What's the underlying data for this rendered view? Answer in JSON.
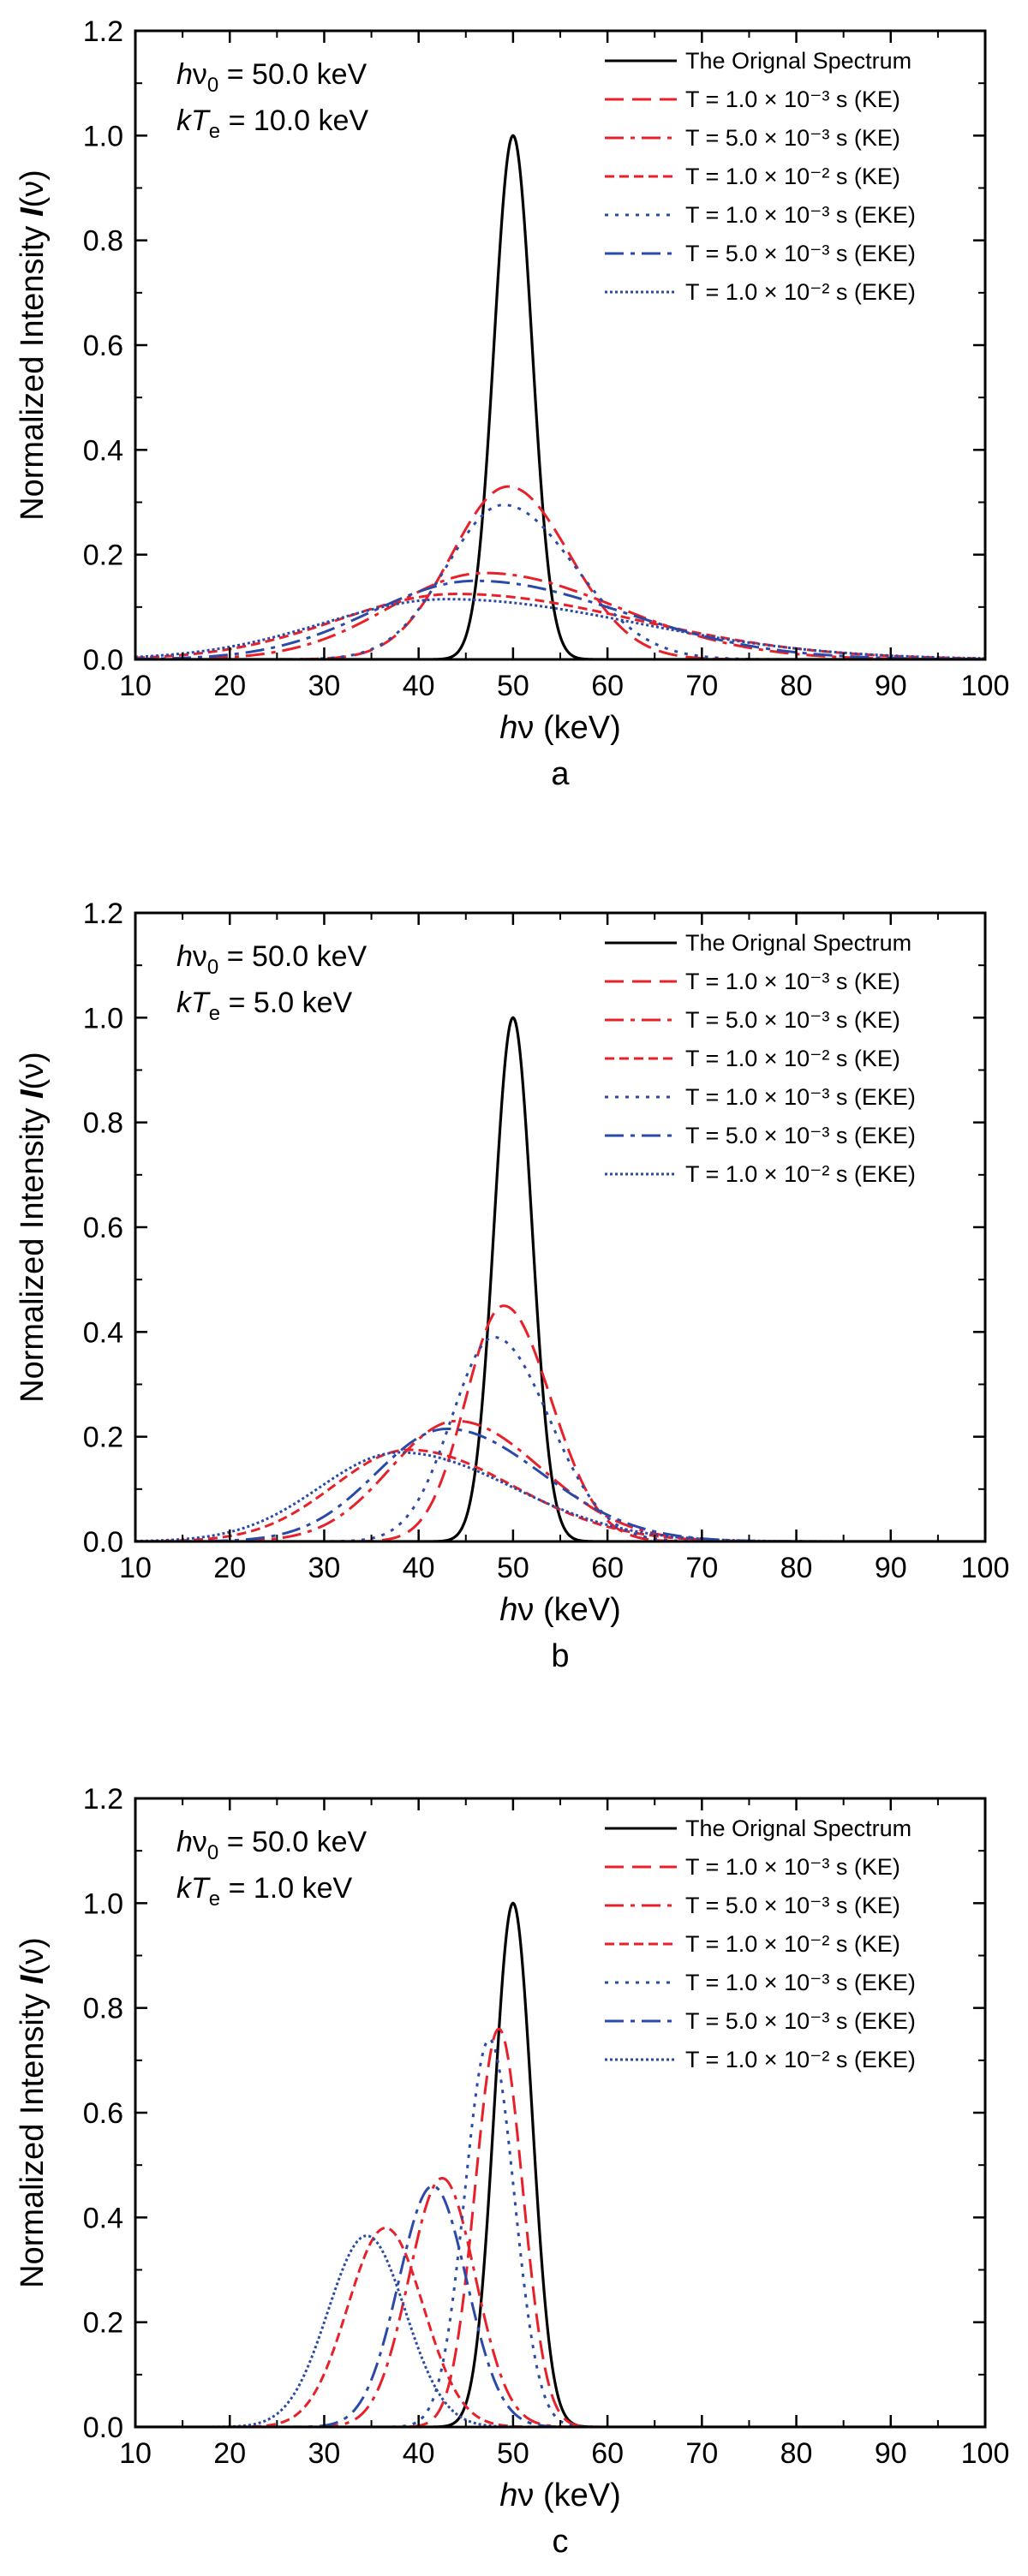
{
  "chart_data": [
    {
      "type": "line",
      "panel_label": "a",
      "annotations": {
        "line1": {
          "a": "h",
          "b": "ν",
          "sub": "0",
          "rest": " = 50.0 keV"
        },
        "line2": {
          "a": "kT",
          "sub": "e",
          "rest": " = 10.0 keV"
        }
      },
      "xlabel": {
        "a": "h",
        "b": "ν",
        "unit": "(keV)"
      },
      "ylabel": {
        "text": "Normalized Intensity ",
        "symbol": "I",
        "arg": "(ν)"
      },
      "xlim": [
        10,
        100
      ],
      "ylim": [
        0,
        1.2
      ],
      "xticks": [
        "10",
        "20",
        "30",
        "40",
        "50",
        "60",
        "70",
        "80",
        "90",
        "100"
      ],
      "yticks": [
        "0.0",
        "0.2",
        "0.4",
        "0.6",
        "0.8",
        "1.0",
        "1.2"
      ],
      "grid": false,
      "legend_position": "top-right",
      "series": [
        {
          "name": "The Orignal Spectrum",
          "color": "#000000",
          "dash": "solid",
          "curve": {
            "peak_x": 50,
            "peak_y": 1.0,
            "sigma_left": 2.0,
            "sigma_right": 2.0
          }
        },
        {
          "name": "T = 1.0 × 10⁻³ s (KE)",
          "color": "#e8202a",
          "dash": "dash",
          "curve": {
            "peak_x": 49.5,
            "peak_y": 0.33,
            "sigma_left": 6.0,
            "sigma_right": 6.5
          }
        },
        {
          "name": "T = 5.0 × 10⁻³ s (KE)",
          "color": "#e8202a",
          "dash": "dashdot",
          "curve": {
            "peak_x": 47,
            "peak_y": 0.165,
            "sigma_left": 10.0,
            "sigma_right": 14.0
          }
        },
        {
          "name": "T = 1.0 × 10⁻² s (KE)",
          "color": "#e8202a",
          "dash": "shortdash",
          "curve": {
            "peak_x": 44,
            "peak_y": 0.125,
            "sigma_left": 12.5,
            "sigma_right": 19.0
          }
        },
        {
          "name": "T = 1.0 × 10⁻³ s (EKE)",
          "color": "#2b4aa8",
          "dash": "dot",
          "curve": {
            "peak_x": 49,
            "peak_y": 0.295,
            "sigma_left": 6.0,
            "sigma_right": 7.5
          }
        },
        {
          "name": "T = 5.0 × 10⁻³ s (EKE)",
          "color": "#2b4aa8",
          "dash": "dashdot",
          "curve": {
            "peak_x": 46,
            "peak_y": 0.15,
            "sigma_left": 11.0,
            "sigma_right": 15.5
          }
        },
        {
          "name": "T = 1.0 × 10⁻² s (EKE)",
          "color": "#2b4aa8",
          "dash": "dense-dot",
          "curve": {
            "peak_x": 43,
            "peak_y": 0.115,
            "sigma_left": 13.0,
            "sigma_right": 20.0
          }
        }
      ]
    },
    {
      "type": "line",
      "panel_label": "b",
      "annotations": {
        "line1": {
          "a": "h",
          "b": "ν",
          "sub": "0",
          "rest": " = 50.0 keV"
        },
        "line2": {
          "a": "kT",
          "sub": "e",
          "rest": " = 5.0 keV"
        }
      },
      "xlabel": {
        "a": "h",
        "b": "ν",
        "unit": "(keV)"
      },
      "ylabel": {
        "text": "Normalized Intensity ",
        "symbol": "I",
        "arg": "(ν)"
      },
      "xlim": [
        10,
        100
      ],
      "ylim": [
        0,
        1.2
      ],
      "xticks": [
        "10",
        "20",
        "30",
        "40",
        "50",
        "60",
        "70",
        "80",
        "90",
        "100"
      ],
      "yticks": [
        "0.0",
        "0.2",
        "0.4",
        "0.6",
        "0.8",
        "1.0",
        "1.2"
      ],
      "grid": false,
      "legend_position": "top-right",
      "series": [
        {
          "name": "The Orignal Spectrum",
          "color": "#000000",
          "dash": "solid",
          "curve": {
            "peak_x": 50,
            "peak_y": 1.0,
            "sigma_left": 2.0,
            "sigma_right": 2.0
          }
        },
        {
          "name": "T = 1.0 × 10⁻³ s (KE)",
          "color": "#e8202a",
          "dash": "dash",
          "curve": {
            "peak_x": 49,
            "peak_y": 0.45,
            "sigma_left": 4.0,
            "sigma_right": 5.0
          }
        },
        {
          "name": "T = 5.0 × 10⁻³ s (KE)",
          "color": "#e8202a",
          "dash": "dashdot",
          "curve": {
            "peak_x": 44,
            "peak_y": 0.23,
            "sigma_left": 7.0,
            "sigma_right": 9.0
          }
        },
        {
          "name": "T = 1.0 × 10⁻² s (KE)",
          "color": "#e8202a",
          "dash": "shortdash",
          "curve": {
            "peak_x": 39,
            "peak_y": 0.175,
            "sigma_left": 8.0,
            "sigma_right": 11.0
          }
        },
        {
          "name": "T = 1.0 × 10⁻³ s (EKE)",
          "color": "#2b4aa8",
          "dash": "dot",
          "curve": {
            "peak_x": 48,
            "peak_y": 0.39,
            "sigma_left": 4.5,
            "sigma_right": 5.8
          }
        },
        {
          "name": "T = 5.0 × 10⁻³ s (EKE)",
          "color": "#2b4aa8",
          "dash": "dashdot",
          "curve": {
            "peak_x": 43,
            "peak_y": 0.215,
            "sigma_left": 7.5,
            "sigma_right": 10.0
          }
        },
        {
          "name": "T = 1.0 × 10⁻² s (EKE)",
          "color": "#2b4aa8",
          "dash": "dense-dot",
          "curve": {
            "peak_x": 38,
            "peak_y": 0.17,
            "sigma_left": 8.5,
            "sigma_right": 12.0
          }
        }
      ]
    },
    {
      "type": "line",
      "panel_label": "c",
      "annotations": {
        "line1": {
          "a": "h",
          "b": "ν",
          "sub": "0",
          "rest": " = 50.0 keV"
        },
        "line2": {
          "a": "kT",
          "sub": "e",
          "rest": " = 1.0 keV"
        }
      },
      "xlabel": {
        "a": "h",
        "b": "ν",
        "unit": "(keV)"
      },
      "ylabel": {
        "text": "Normalized Intensity ",
        "symbol": "I",
        "arg": "(ν)"
      },
      "xlim": [
        10,
        100
      ],
      "ylim": [
        0,
        1.2
      ],
      "xticks": [
        "10",
        "20",
        "30",
        "40",
        "50",
        "60",
        "70",
        "80",
        "90",
        "100"
      ],
      "yticks": [
        "0.0",
        "0.2",
        "0.4",
        "0.6",
        "0.8",
        "1.0",
        "1.2"
      ],
      "grid": false,
      "legend_position": "top-right",
      "series": [
        {
          "name": "The Orignal Spectrum",
          "color": "#000000",
          "dash": "solid",
          "curve": {
            "peak_x": 50,
            "peak_y": 1.0,
            "sigma_left": 2.0,
            "sigma_right": 2.0
          }
        },
        {
          "name": "T = 1.0 × 10⁻³ s (KE)",
          "color": "#e8202a",
          "dash": "dash",
          "curve": {
            "peak_x": 48.5,
            "peak_y": 0.76,
            "sigma_left": 2.5,
            "sigma_right": 2.5
          }
        },
        {
          "name": "T = 5.0 × 10⁻³ s (KE)",
          "color": "#e8202a",
          "dash": "dashdot",
          "curve": {
            "peak_x": 42.5,
            "peak_y": 0.475,
            "sigma_left": 3.5,
            "sigma_right": 3.5
          }
        },
        {
          "name": "T = 1.0 × 10⁻² s (KE)",
          "color": "#e8202a",
          "dash": "shortdash",
          "curve": {
            "peak_x": 36.5,
            "peak_y": 0.38,
            "sigma_left": 4.0,
            "sigma_right": 4.0
          }
        },
        {
          "name": "T = 1.0 × 10⁻³ s (EKE)",
          "color": "#2b4aa8",
          "dash": "dot",
          "curve": {
            "peak_x": 47.5,
            "peak_y": 0.74,
            "sigma_left": 2.6,
            "sigma_right": 2.6
          }
        },
        {
          "name": "T = 5.0 × 10⁻³ s (EKE)",
          "color": "#2b4aa8",
          "dash": "dashdot",
          "curve": {
            "peak_x": 41.5,
            "peak_y": 0.46,
            "sigma_left": 3.6,
            "sigma_right": 3.6
          }
        },
        {
          "name": "T = 1.0 × 10⁻² s (EKE)",
          "color": "#2b4aa8",
          "dash": "dense-dot",
          "curve": {
            "peak_x": 34.5,
            "peak_y": 0.365,
            "sigma_left": 4.1,
            "sigma_right": 4.1
          }
        }
      ]
    }
  ]
}
